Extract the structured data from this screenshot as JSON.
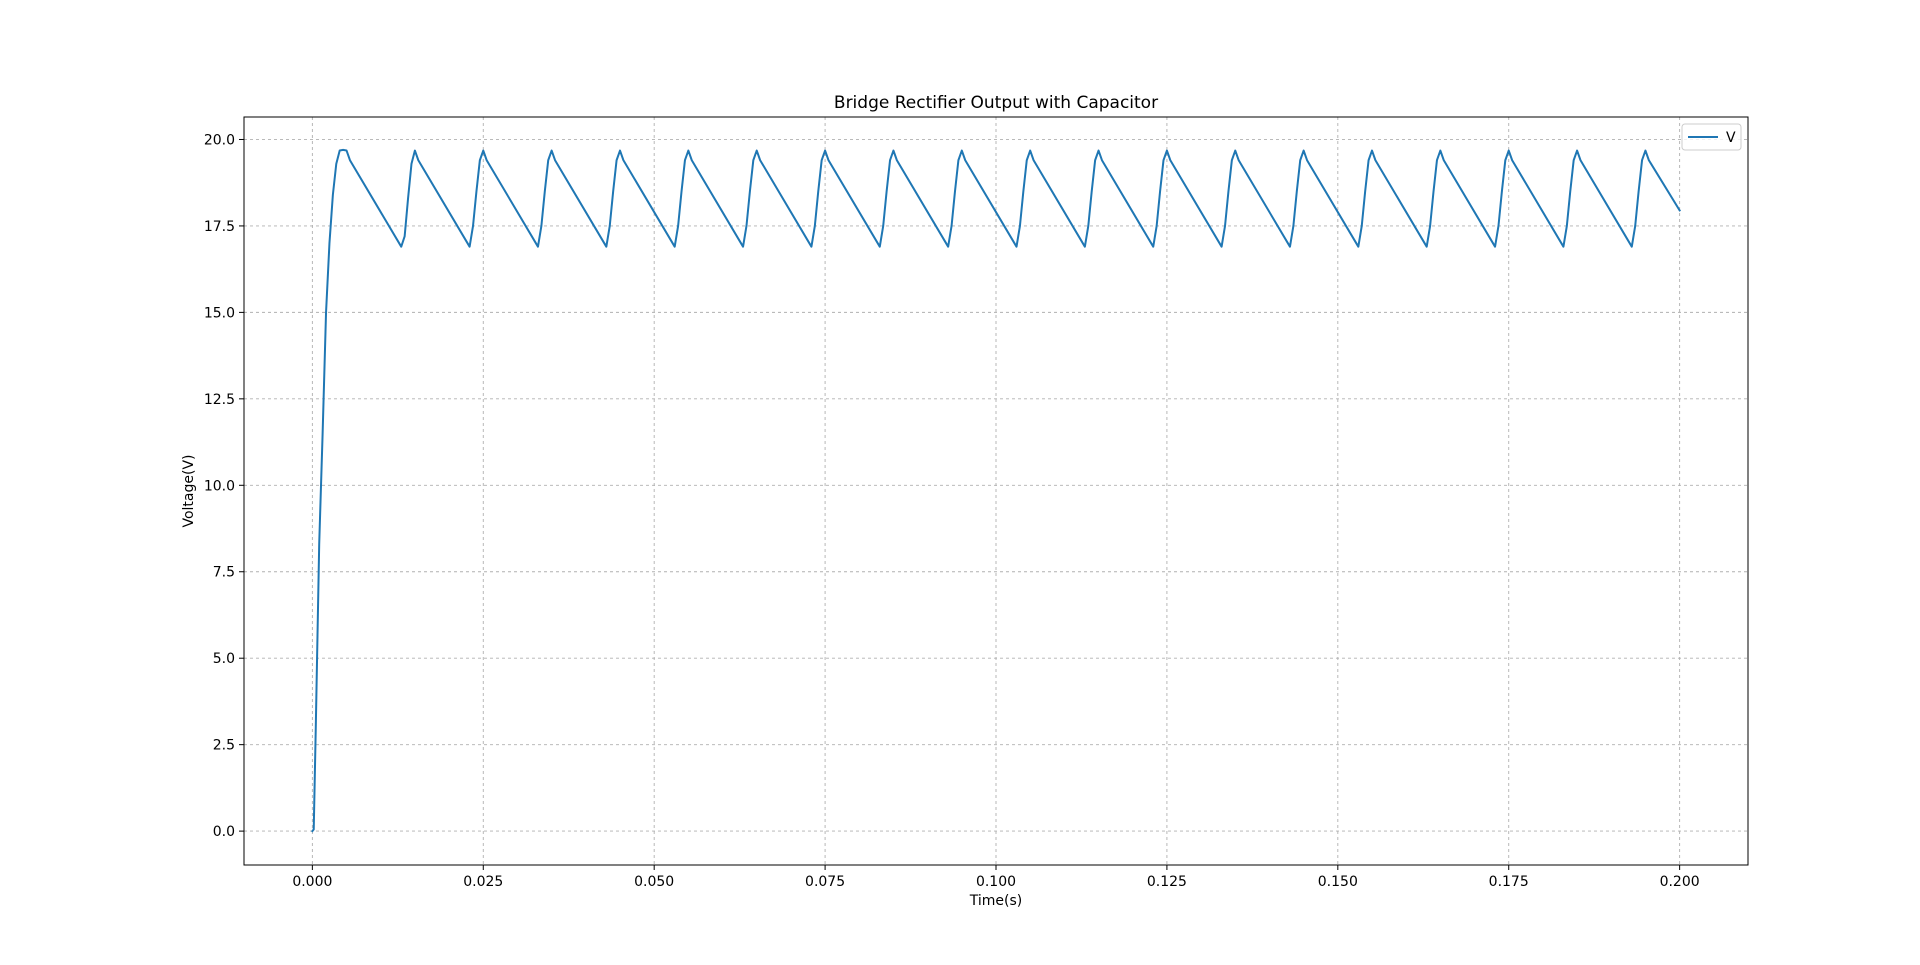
{
  "chart_data": {
    "type": "line",
    "title": "Bridge Rectifier Output with Capacitor",
    "xlabel": "Time(s)",
    "ylabel": "Voltage(V)",
    "xlim": [
      -0.01,
      0.21
    ],
    "ylim": [
      -0.98,
      20.65
    ],
    "xticks": [
      0.0,
      0.025,
      0.05,
      0.075,
      0.1,
      0.125,
      0.15,
      0.175,
      0.2
    ],
    "xtick_labels": [
      "0.000",
      "0.025",
      "0.050",
      "0.075",
      "0.100",
      "0.125",
      "0.150",
      "0.175",
      "0.200"
    ],
    "yticks": [
      0.0,
      2.5,
      5.0,
      7.5,
      10.0,
      12.5,
      15.0,
      17.5,
      20.0
    ],
    "ytick_labels": [
      "0.0",
      "2.5",
      "5.0",
      "7.5",
      "10.0",
      "12.5",
      "15.0",
      "17.5",
      "20.0"
    ],
    "grid": true,
    "legend_position": "top-right",
    "series": [
      {
        "name": "V",
        "color": "#1f77b4",
        "x": [
          0.0,
          0.0002,
          0.0005,
          0.001,
          0.0015,
          0.002,
          0.0025,
          0.003,
          0.0035,
          0.004,
          0.0045,
          0.005,
          0.0055,
          0.013,
          0.0135,
          0.014,
          0.0145,
          0.015,
          0.0155,
          0.023,
          0.0235,
          0.024,
          0.0245,
          0.025,
          0.0255,
          0.033,
          0.0335,
          0.034,
          0.0345,
          0.035,
          0.0355,
          0.043,
          0.0435,
          0.044,
          0.0445,
          0.045,
          0.0455,
          0.053,
          0.0535,
          0.054,
          0.0545,
          0.055,
          0.0555,
          0.063,
          0.0635,
          0.064,
          0.0645,
          0.065,
          0.0655,
          0.073,
          0.0735,
          0.074,
          0.0745,
          0.075,
          0.0755,
          0.083,
          0.0835,
          0.084,
          0.0845,
          0.085,
          0.0855,
          0.093,
          0.0935,
          0.094,
          0.0945,
          0.095,
          0.0955,
          0.103,
          0.1035,
          0.104,
          0.1045,
          0.105,
          0.1055,
          0.113,
          0.1135,
          0.114,
          0.1145,
          0.115,
          0.1155,
          0.123,
          0.1235,
          0.124,
          0.1245,
          0.125,
          0.1255,
          0.133,
          0.1335,
          0.134,
          0.1345,
          0.135,
          0.1355,
          0.143,
          0.1435,
          0.144,
          0.1445,
          0.145,
          0.1455,
          0.153,
          0.1535,
          0.154,
          0.1545,
          0.155,
          0.1555,
          0.163,
          0.1635,
          0.164,
          0.1645,
          0.165,
          0.1655,
          0.173,
          0.1735,
          0.174,
          0.1745,
          0.175,
          0.1755,
          0.183,
          0.1835,
          0.184,
          0.1845,
          0.185,
          0.1855,
          0.193,
          0.1935,
          0.194,
          0.1945,
          0.195,
          0.1955,
          0.2
        ],
        "y": [
          0.0,
          0.05,
          3.0,
          8.3,
          11.5,
          15.0,
          17.0,
          18.4,
          19.3,
          19.68,
          19.7,
          19.68,
          19.4,
          16.9,
          17.2,
          18.3,
          19.3,
          19.68,
          19.4,
          16.9,
          17.5,
          18.5,
          19.4,
          19.68,
          19.4,
          16.9,
          17.5,
          18.5,
          19.4,
          19.68,
          19.4,
          16.9,
          17.5,
          18.5,
          19.4,
          19.68,
          19.4,
          16.9,
          17.5,
          18.5,
          19.4,
          19.68,
          19.4,
          16.9,
          17.5,
          18.5,
          19.4,
          19.68,
          19.4,
          16.9,
          17.5,
          18.5,
          19.4,
          19.68,
          19.4,
          16.9,
          17.5,
          18.5,
          19.4,
          19.68,
          19.4,
          16.9,
          17.5,
          18.5,
          19.4,
          19.68,
          19.4,
          16.9,
          17.5,
          18.5,
          19.4,
          19.68,
          19.4,
          16.9,
          17.5,
          18.5,
          19.4,
          19.68,
          19.4,
          16.9,
          17.5,
          18.5,
          19.4,
          19.68,
          19.4,
          16.9,
          17.5,
          18.5,
          19.4,
          19.68,
          19.4,
          16.9,
          17.5,
          18.5,
          19.4,
          19.68,
          19.4,
          16.9,
          17.5,
          18.5,
          19.4,
          19.68,
          19.4,
          16.9,
          17.5,
          18.5,
          19.4,
          19.68,
          19.4,
          16.9,
          17.5,
          18.5,
          19.4,
          19.68,
          19.4,
          16.9,
          17.5,
          18.5,
          19.4,
          19.68,
          19.4,
          16.9,
          17.5,
          18.5,
          19.4,
          19.68,
          19.4,
          17.95
        ]
      }
    ]
  }
}
